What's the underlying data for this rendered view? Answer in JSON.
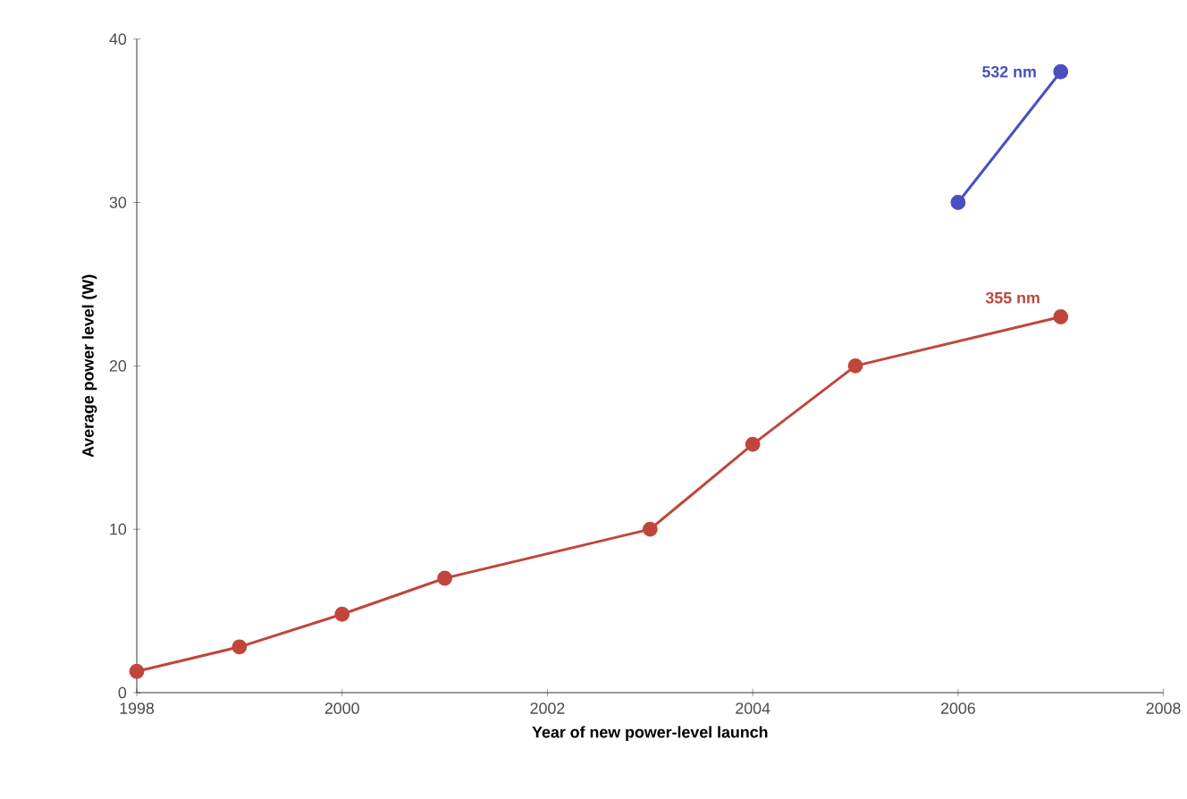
{
  "chart_data": {
    "type": "line",
    "xlabel": "Year of new power-level launch",
    "ylabel": "Average power level (W)",
    "xlim": [
      1998,
      2008
    ],
    "ylim": [
      0,
      40
    ],
    "xticks": [
      1998,
      2000,
      2002,
      2004,
      2006,
      2008
    ],
    "yticks": [
      0,
      10,
      20,
      30,
      40
    ],
    "marker": "circle",
    "series": [
      {
        "name": "355 nm",
        "color": "#c0463c",
        "x": [
          1998,
          1999,
          2000,
          2001,
          2003,
          2004,
          2005,
          2007
        ],
        "values": [
          1.3,
          2.8,
          4.8,
          7,
          10,
          15.2,
          20,
          23
        ]
      },
      {
        "name": "532 nm",
        "color": "#4a4fc0",
        "x": [
          2006,
          2007
        ],
        "values": [
          30,
          38
        ]
      }
    ]
  }
}
